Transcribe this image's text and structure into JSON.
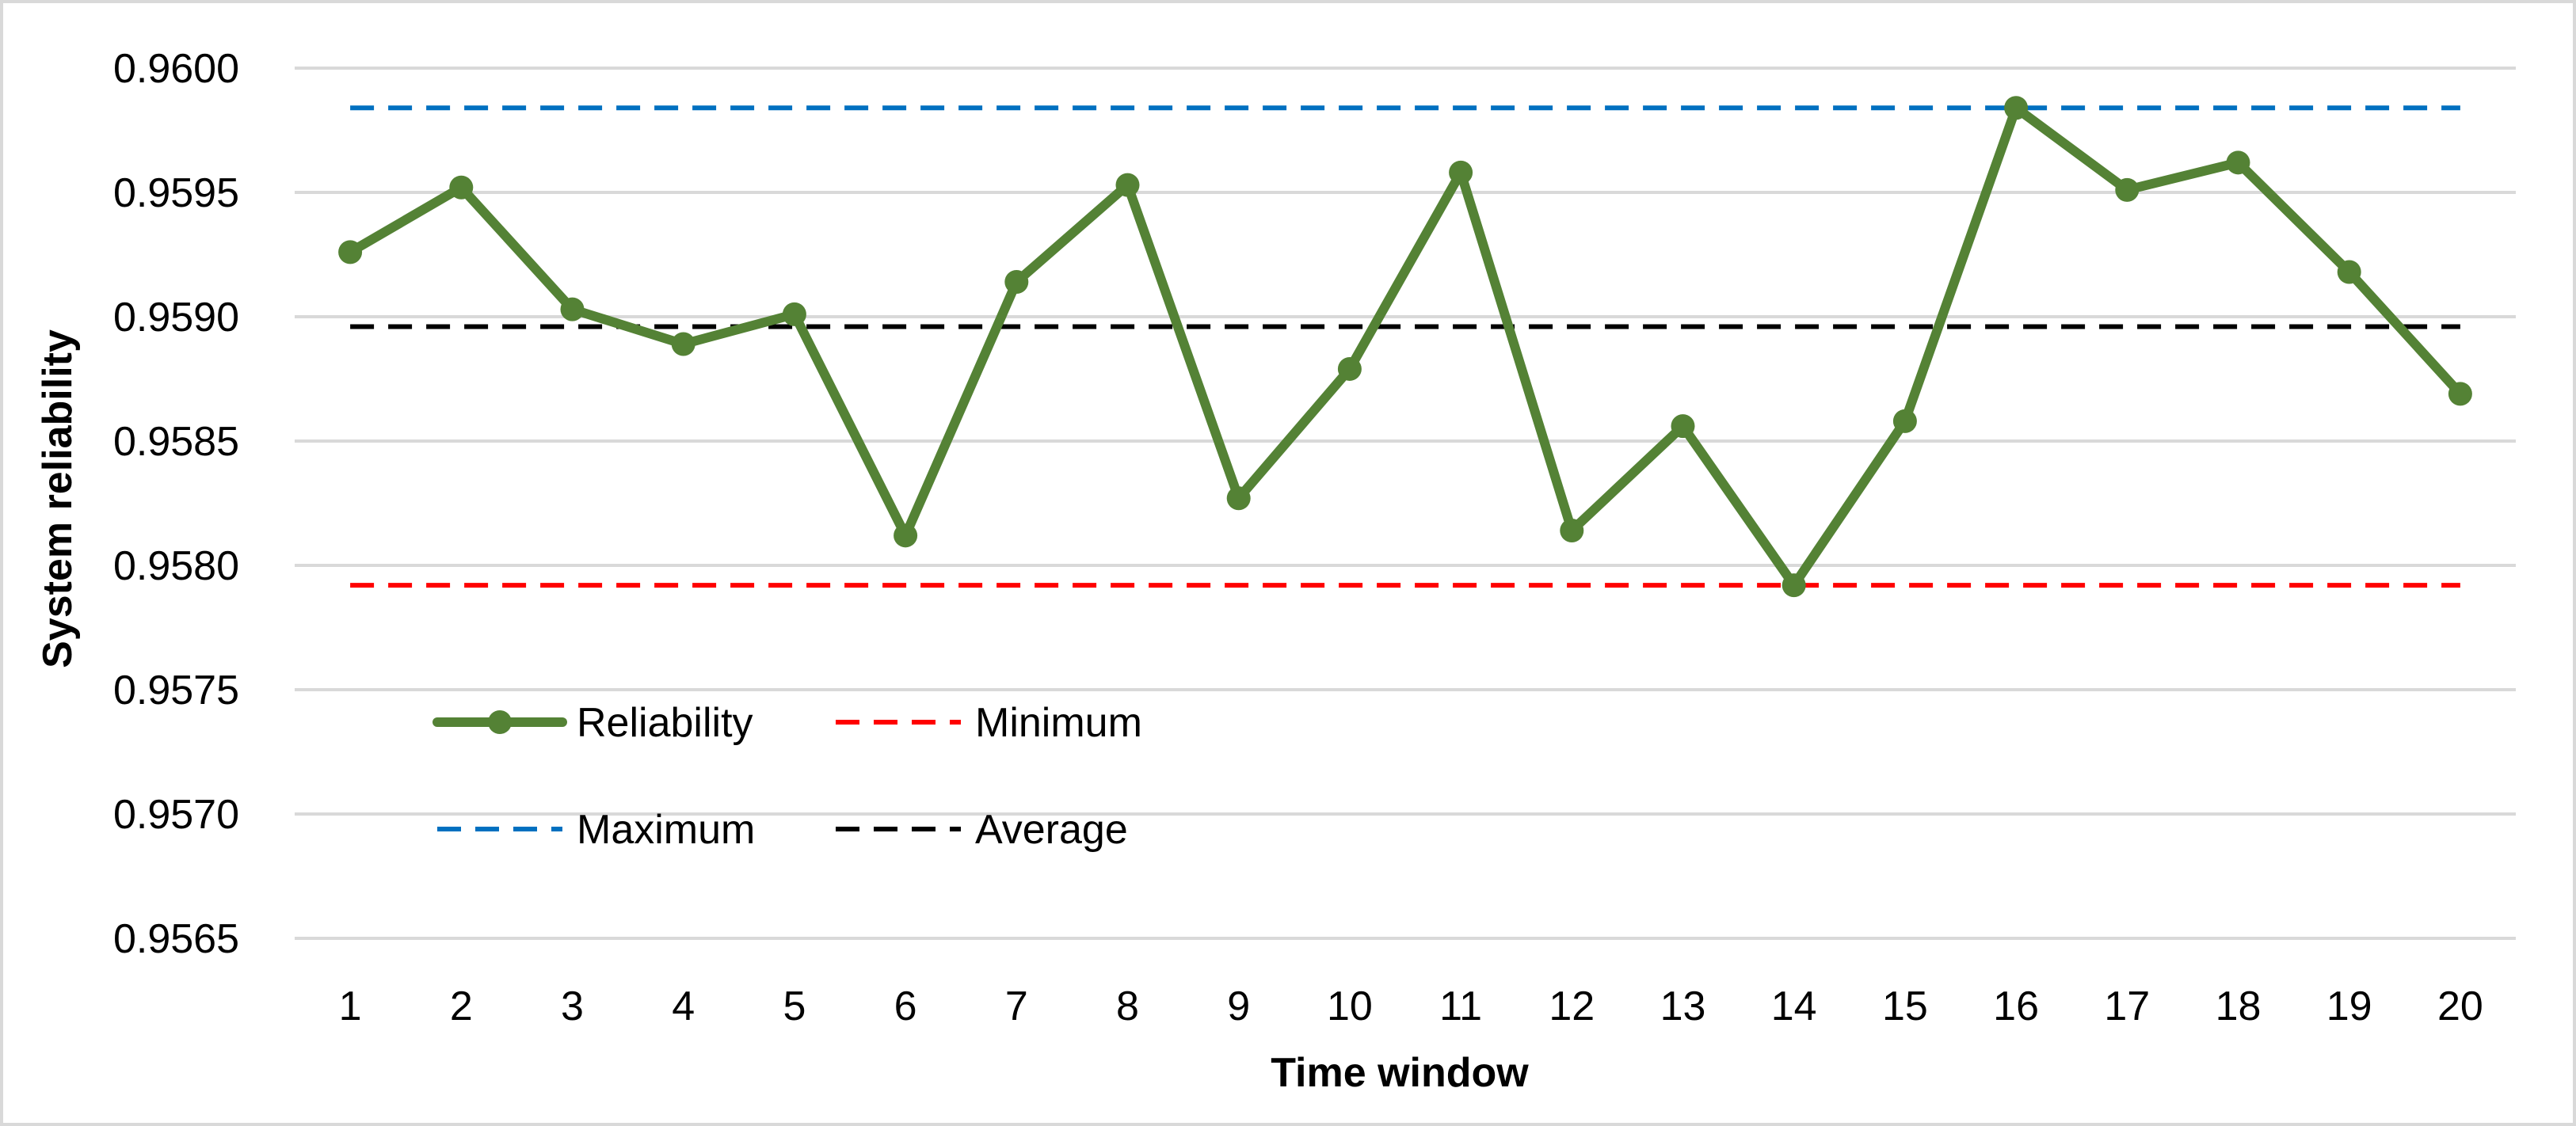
{
  "chart_data": {
    "type": "line",
    "title": "",
    "xlabel": "Time window",
    "ylabel": "System reliability",
    "x": [
      1,
      2,
      3,
      4,
      5,
      6,
      7,
      8,
      9,
      10,
      11,
      12,
      13,
      14,
      15,
      16,
      17,
      18,
      19,
      20
    ],
    "ylim": [
      0.9565,
      0.96
    ],
    "y_ticks": [
      "0.9565",
      "0.9570",
      "0.9575",
      "0.9580",
      "0.9585",
      "0.9590",
      "0.9595",
      "0.9600"
    ],
    "grid": true,
    "legend_position": "lower-left",
    "series": [
      {
        "name": "Reliability",
        "style": "solid-marker",
        "color": "#548235",
        "values": [
          0.95926,
          0.95952,
          0.95903,
          0.95889,
          0.95901,
          0.95812,
          0.95914,
          0.95953,
          0.95827,
          0.95879,
          0.95958,
          0.95814,
          0.95856,
          0.95792,
          0.95858,
          0.95984,
          0.95951,
          0.95962,
          0.95918,
          0.95869
        ]
      },
      {
        "name": "Minimum",
        "style": "dashed",
        "color": "#ff0000",
        "values": [
          0.95792,
          0.95792,
          0.95792,
          0.95792,
          0.95792,
          0.95792,
          0.95792,
          0.95792,
          0.95792,
          0.95792,
          0.95792,
          0.95792,
          0.95792,
          0.95792,
          0.95792,
          0.95792,
          0.95792,
          0.95792,
          0.95792,
          0.95792
        ]
      },
      {
        "name": "Maximum",
        "style": "dashed",
        "color": "#0070c0",
        "values": [
          0.95984,
          0.95984,
          0.95984,
          0.95984,
          0.95984,
          0.95984,
          0.95984,
          0.95984,
          0.95984,
          0.95984,
          0.95984,
          0.95984,
          0.95984,
          0.95984,
          0.95984,
          0.95984,
          0.95984,
          0.95984,
          0.95984,
          0.95984
        ]
      },
      {
        "name": "Average",
        "style": "dashed",
        "color": "#000000",
        "values": [
          0.95896,
          0.95896,
          0.95896,
          0.95896,
          0.95896,
          0.95896,
          0.95896,
          0.95896,
          0.95896,
          0.95896,
          0.95896,
          0.95896,
          0.95896,
          0.95896,
          0.95896,
          0.95896,
          0.95896,
          0.95896,
          0.95896,
          0.95896
        ]
      }
    ]
  }
}
